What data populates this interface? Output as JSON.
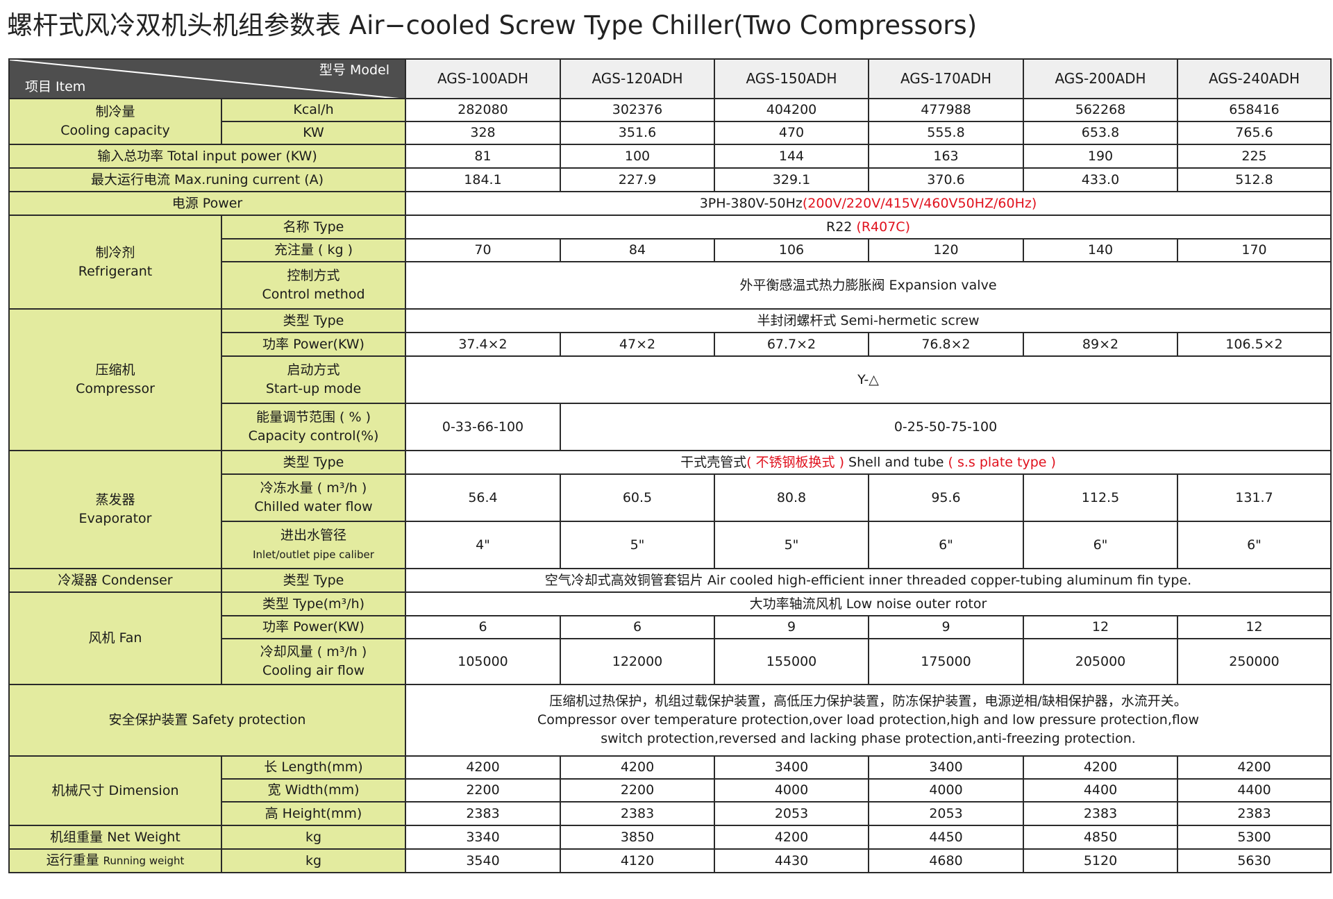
{
  "title": "螺杆式风冷双机头机组参数表 Air−cooled Screw Type Chiller(Two Compressors)",
  "header": {
    "model_label": "型号  Model",
    "item_label": "项目  Item",
    "models": [
      "AGS-100ADH",
      "AGS-120ADH",
      "AGS-150ADH",
      "AGS-170ADH",
      "AGS-200ADH",
      "AGS-240ADH"
    ]
  },
  "cooling": {
    "cn": "制冷量",
    "en": "Cooling capacity",
    "kcal_unit": "Kcal/h",
    "kcal_values": [
      "282080",
      "302376",
      "404200",
      "477988",
      "562268",
      "658416"
    ],
    "kw_unit": "KW",
    "kw_values": [
      "328",
      "351.6",
      "470",
      "555.8",
      "653.8",
      "765.6"
    ]
  },
  "total_input": {
    "label": "输入总功率  Total input power (KW)",
    "values": [
      "81",
      "100",
      "144",
      "163",
      "190",
      "225"
    ]
  },
  "max_current": {
    "label": "最大运行电流  Max.runing current (A)",
    "values": [
      "184.1",
      "227.9",
      "329.1",
      "370.6",
      "433.0",
      "512.8"
    ]
  },
  "power": {
    "label": "电源  Power",
    "value": "3PH-380V-50Hz",
    "value_alt": "(200V/220V/415V/460V50HZ/60Hz)"
  },
  "refrigerant": {
    "cn": "制冷剂",
    "en": "Refrigerant",
    "type_label": "名称  Type",
    "type_value": "R22 ",
    "type_alt": "(R407C)",
    "charge_label": "充注量 ( kg )",
    "charge_values": [
      "70",
      "84",
      "106",
      "120",
      "140",
      "170"
    ],
    "control_cn": "控制方式",
    "control_en": "Control method",
    "control_value": "外平衡感温式热力膨胀阀  Expansion valve"
  },
  "compressor": {
    "cn": "压缩机",
    "en": "Compressor",
    "type_label": "类型  Type",
    "type_value": "半封闭螺杆式  Semi-hermetic screw",
    "power_label": "功率  Power(KW)",
    "power_values": [
      "37.4×2",
      "47×2",
      "67.7×2",
      "76.8×2",
      "89×2",
      "106.5×2"
    ],
    "startup_cn": "启动方式",
    "startup_en": "Start-up mode",
    "startup_value": "Y-△",
    "capacity_cn": "能量调节范围 ( % )",
    "capacity_en": "Capacity control(%)",
    "capacity_first": "0-33-66-100",
    "capacity_rest": "0-25-50-75-100"
  },
  "evaporator": {
    "cn": "蒸发器",
    "en": "Evaporator",
    "type_label": "类型  Type",
    "type_cn": "干式壳管式",
    "type_cn_alt": "( 不锈钢板换式 )",
    "type_en": "  Shell and tube ",
    "type_en_alt": "( s.s plate type )",
    "flow_cn": "冷冻水量 ( m³/h )",
    "flow_en": "Chilled water flow",
    "flow_values": [
      "56.4",
      "60.5",
      "80.8",
      "95.6",
      "112.5",
      "131.7"
    ],
    "pipe_cn": "进出水管径",
    "pipe_en": "Inlet/outlet pipe caliber",
    "pipe_values": [
      "4\"",
      "5\"",
      "5\"",
      "6\"",
      "6\"",
      "6\""
    ]
  },
  "condenser": {
    "label": "冷凝器  Condenser",
    "type_label": "类型  Type",
    "type_value": "空气冷却式高效铜管套铝片  Air cooled high-efficient inner threaded copper-tubing aluminum fin type."
  },
  "fan": {
    "label": "风机  Fan",
    "type_label": "类型  Type(m³/h)",
    "type_value": "大功率轴流风机  Low noise outer rotor",
    "power_label": "功率  Power(KW)",
    "power_values": [
      "6",
      "6",
      "9",
      "9",
      "12",
      "12"
    ],
    "airflow_cn": "冷却风量 ( m³/h )",
    "airflow_en": "Cooling air flow",
    "airflow_values": [
      "105000",
      "122000",
      "155000",
      "175000",
      "205000",
      "250000"
    ]
  },
  "safety": {
    "label": "安全保护装置  Safety protection",
    "line1": "压缩机过热保护，机组过载保护装置，高低压力保护装置，防冻保护装置，电源逆相/缺相保护器，水流开关。",
    "line2": "Compressor over temperature protection,over load protection,high and low pressure protection,flow",
    "line3": "switch protection,reversed and lacking phase protection,anti-freezing protection."
  },
  "dimension": {
    "label": "机械尺寸  Dimension",
    "length_label": "长  Length(mm)",
    "length_values": [
      "4200",
      "4200",
      "3400",
      "3400",
      "4200",
      "4200"
    ],
    "width_label": "宽  Width(mm)",
    "width_values": [
      "2200",
      "2200",
      "4000",
      "4000",
      "4400",
      "4400"
    ],
    "height_label": "高  Height(mm)",
    "height_values": [
      "2383",
      "2383",
      "2053",
      "2053",
      "2383",
      "2383"
    ]
  },
  "net_weight": {
    "label": "机组重量  Net Weight",
    "unit": "kg",
    "values": [
      "3340",
      "3850",
      "4200",
      "4450",
      "4850",
      "5300"
    ]
  },
  "running_weight": {
    "label_cn": "运行重量 ",
    "label_en": "Running weight",
    "unit": "kg",
    "values": [
      "3540",
      "4120",
      "4430",
      "4680",
      "5120",
      "5630"
    ]
  }
}
